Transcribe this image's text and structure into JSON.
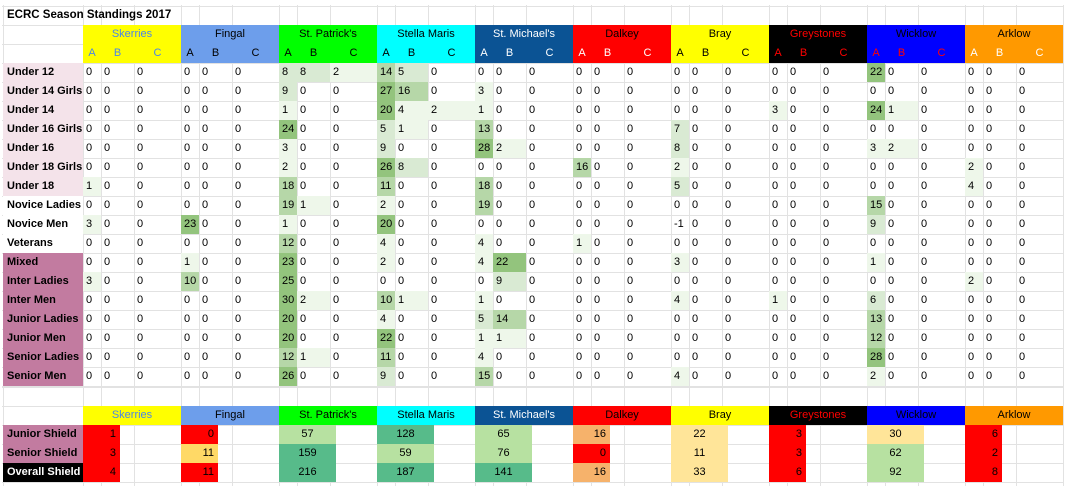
{
  "title": "ECRC Season Standings 2017",
  "sub_headers": [
    "A",
    "B",
    "C"
  ],
  "clubs": [
    {
      "name": "Skerries",
      "bg": "#ffff00",
      "fg": "#4a86e8",
      "sub_bg": "#ffff00",
      "sub_fg": "#4a86e8"
    },
    {
      "name": "Fingal",
      "bg": "#6d9eeb",
      "fg": "#000000",
      "sub_bg": "#6d9eeb",
      "sub_fg": "#000000"
    },
    {
      "name": "St. Patrick's",
      "bg": "#00ff00",
      "fg": "#000000",
      "sub_bg": "#00ff00",
      "sub_fg": "#000000"
    },
    {
      "name": "Stella Maris",
      "bg": "#00ffff",
      "fg": "#000000",
      "sub_bg": "#00ffff",
      "sub_fg": "#000000"
    },
    {
      "name": "St. Michael's",
      "bg": "#0b5394",
      "fg": "#ffffff",
      "sub_bg": "#0b5394",
      "sub_fg": "#ffffff"
    },
    {
      "name": "Dalkey",
      "bg": "#ff0000",
      "fg": "#000000",
      "sub_bg": "#ff0000",
      "sub_fg": "#ffffff"
    },
    {
      "name": "Bray",
      "bg": "#ffff00",
      "fg": "#000000",
      "sub_bg": "#ffff00",
      "sub_fg": "#000000"
    },
    {
      "name": "Greystones",
      "bg": "#000000",
      "fg": "#ff0000",
      "sub_bg": "#000000",
      "sub_fg": "#ff0000"
    },
    {
      "name": "Wicklow",
      "bg": "#0000ff",
      "fg": "#000000",
      "sub_bg": "#0000ff",
      "sub_fg": "#ff0000"
    },
    {
      "name": "Arklow",
      "bg": "#ff9900",
      "fg": "#000000",
      "sub_bg": "#ff9900",
      "sub_fg": "#ffffff"
    }
  ],
  "rows": [
    {
      "label": "Under 12",
      "bg": "#f4e3ea",
      "values": [
        0,
        0,
        0,
        0,
        0,
        0,
        8,
        8,
        2,
        14,
        5,
        0,
        0,
        0,
        0,
        0,
        0,
        0,
        0,
        0,
        0,
        0,
        0,
        0,
        22,
        0,
        0,
        0,
        0,
        0
      ]
    },
    {
      "label": "Under 14 Girls",
      "bg": "#f4e3ea",
      "values": [
        0,
        0,
        0,
        0,
        0,
        0,
        9,
        0,
        0,
        27,
        16,
        0,
        3,
        0,
        0,
        0,
        0,
        0,
        0,
        0,
        0,
        0,
        0,
        0,
        0,
        0,
        0,
        0,
        0,
        0
      ]
    },
    {
      "label": "Under 14",
      "bg": "#f4e3ea",
      "values": [
        0,
        0,
        0,
        0,
        0,
        0,
        1,
        0,
        0,
        20,
        4,
        2,
        1,
        0,
        0,
        0,
        0,
        0,
        0,
        0,
        0,
        3,
        0,
        0,
        24,
        1,
        0,
        0,
        0,
        0
      ]
    },
    {
      "label": "Under 16 Girls",
      "bg": "#f4e3ea",
      "values": [
        0,
        0,
        0,
        0,
        0,
        0,
        24,
        0,
        0,
        5,
        1,
        0,
        13,
        0,
        0,
        0,
        0,
        0,
        7,
        0,
        0,
        0,
        0,
        0,
        0,
        0,
        0,
        0,
        0,
        0
      ]
    },
    {
      "label": "Under 16",
      "bg": "#f4e3ea",
      "values": [
        0,
        0,
        0,
        0,
        0,
        0,
        3,
        0,
        0,
        9,
        0,
        0,
        28,
        2,
        0,
        0,
        0,
        0,
        8,
        0,
        0,
        0,
        0,
        0,
        3,
        2,
        0,
        0,
        0,
        0
      ]
    },
    {
      "label": "Under 18 Girls",
      "bg": "#f4e3ea",
      "values": [
        0,
        0,
        0,
        0,
        0,
        0,
        2,
        0,
        0,
        26,
        8,
        0,
        0,
        0,
        0,
        16,
        0,
        0,
        2,
        0,
        0,
        0,
        0,
        0,
        0,
        0,
        0,
        2,
        0,
        0
      ]
    },
    {
      "label": "Under 18",
      "bg": "#f4e3ea",
      "values": [
        1,
        0,
        0,
        0,
        0,
        0,
        18,
        0,
        0,
        11,
        0,
        0,
        18,
        0,
        0,
        0,
        0,
        0,
        5,
        0,
        0,
        0,
        0,
        0,
        0,
        0,
        0,
        4,
        0,
        0
      ]
    },
    {
      "label": "Novice Ladies",
      "bg": "#ffffff",
      "values": [
        0,
        0,
        0,
        0,
        0,
        0,
        19,
        1,
        0,
        2,
        0,
        0,
        19,
        0,
        0,
        0,
        0,
        0,
        0,
        0,
        0,
        0,
        0,
        0,
        15,
        0,
        0,
        0,
        0,
        0
      ]
    },
    {
      "label": "Novice Men",
      "bg": "#ffffff",
      "values": [
        3,
        0,
        0,
        23,
        0,
        0,
        1,
        0,
        0,
        20,
        0,
        0,
        0,
        0,
        0,
        0,
        0,
        0,
        -1,
        0,
        0,
        0,
        0,
        0,
        9,
        0,
        0,
        0,
        0,
        0
      ]
    },
    {
      "label": "Veterans",
      "bg": "#ffffff",
      "values": [
        0,
        0,
        0,
        0,
        0,
        0,
        12,
        0,
        0,
        4,
        0,
        0,
        4,
        0,
        0,
        1,
        0,
        0,
        0,
        0,
        0,
        0,
        0,
        0,
        0,
        0,
        0,
        0,
        0,
        0
      ]
    },
    {
      "label": "Mixed",
      "bg": "#c27ba0",
      "values": [
        0,
        0,
        0,
        1,
        0,
        0,
        23,
        0,
        0,
        2,
        0,
        0,
        4,
        22,
        0,
        0,
        0,
        0,
        3,
        0,
        0,
        0,
        0,
        0,
        1,
        0,
        0,
        0,
        0,
        0
      ]
    },
    {
      "label": "Inter Ladies",
      "bg": "#c27ba0",
      "values": [
        3,
        0,
        0,
        10,
        0,
        0,
        25,
        0,
        0,
        0,
        0,
        0,
        0,
        9,
        0,
        0,
        0,
        0,
        0,
        0,
        0,
        0,
        0,
        0,
        0,
        0,
        0,
        2,
        0,
        0
      ]
    },
    {
      "label": "Inter Men",
      "bg": "#c27ba0",
      "values": [
        0,
        0,
        0,
        0,
        0,
        0,
        30,
        2,
        0,
        10,
        1,
        0,
        1,
        0,
        0,
        0,
        0,
        0,
        4,
        0,
        0,
        1,
        0,
        0,
        6,
        0,
        0,
        0,
        0,
        0
      ]
    },
    {
      "label": "Junior Ladies",
      "bg": "#c27ba0",
      "values": [
        0,
        0,
        0,
        0,
        0,
        0,
        20,
        0,
        0,
        4,
        0,
        0,
        5,
        14,
        0,
        0,
        0,
        0,
        0,
        0,
        0,
        0,
        0,
        0,
        13,
        0,
        0,
        0,
        0,
        0
      ]
    },
    {
      "label": "Junior Men",
      "bg": "#c27ba0",
      "values": [
        0,
        0,
        0,
        0,
        0,
        0,
        20,
        0,
        0,
        22,
        0,
        0,
        1,
        1,
        0,
        0,
        0,
        0,
        0,
        0,
        0,
        0,
        0,
        0,
        12,
        0,
        0,
        0,
        0,
        0
      ]
    },
    {
      "label": "Senior Ladies",
      "bg": "#c27ba0",
      "values": [
        0,
        0,
        0,
        0,
        0,
        0,
        12,
        1,
        0,
        11,
        0,
        0,
        4,
        0,
        0,
        0,
        0,
        0,
        0,
        0,
        0,
        0,
        0,
        0,
        28,
        0,
        0,
        0,
        0,
        0
      ]
    },
    {
      "label": "Senior Men",
      "bg": "#c27ba0",
      "values": [
        0,
        0,
        0,
        0,
        0,
        0,
        26,
        0,
        0,
        9,
        0,
        0,
        15,
        0,
        0,
        0,
        0,
        0,
        4,
        0,
        0,
        0,
        0,
        0,
        2,
        0,
        0,
        0,
        0,
        0
      ]
    }
  ],
  "shields": [
    {
      "label": "Junior Shield",
      "label_bg": "#c27ba0",
      "label_fg": "#000000",
      "values": [
        1,
        0,
        57,
        128,
        65,
        16,
        22,
        3,
        30,
        6
      ],
      "colors": [
        "#ff0000",
        "#ff0000",
        "#b7e1a1",
        "#57bb8a",
        "#b7e1a1",
        "#f6b26b",
        "#ffe599",
        "#ff0000",
        "#ffe599",
        "#ff0000"
      ]
    },
    {
      "label": "Senior Shield",
      "label_bg": "#c27ba0",
      "label_fg": "#000000",
      "values": [
        3,
        11,
        159,
        59,
        76,
        0,
        11,
        3,
        62,
        2
      ],
      "colors": [
        "#ff0000",
        "#ffd966",
        "#57bb8a",
        "#b7e1a1",
        "#b7e1a1",
        "#ff0000",
        "#ffe599",
        "#ff0000",
        "#b7e1a1",
        "#ff0000"
      ]
    },
    {
      "label": "Overall Shield",
      "label_bg": "#000000",
      "label_fg": "#ffffff",
      "values": [
        4,
        11,
        216,
        187,
        141,
        16,
        33,
        6,
        92,
        8
      ],
      "colors": [
        "#ff0000",
        "#ff0000",
        "#57bb8a",
        "#57bb8a",
        "#57bb8a",
        "#f6b26b",
        "#ffe599",
        "#ff0000",
        "#b7e1a1",
        "#ff0000"
      ]
    }
  ]
}
